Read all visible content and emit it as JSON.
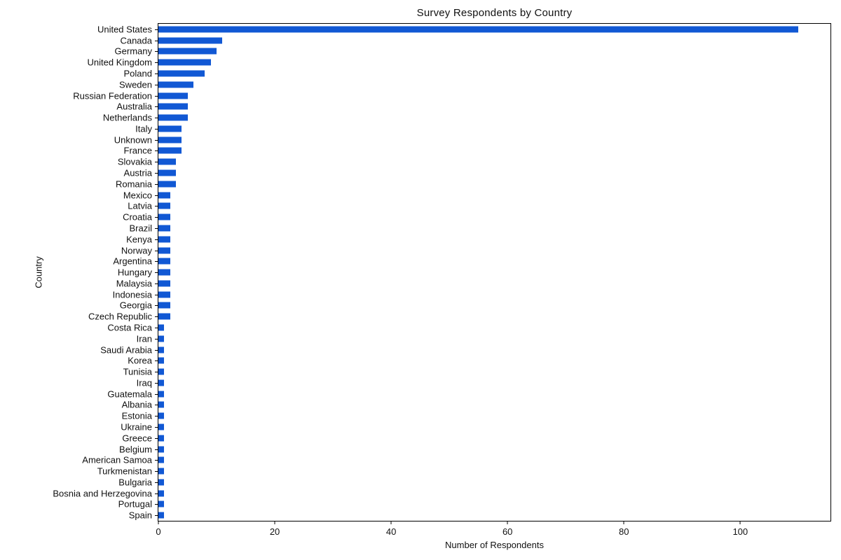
{
  "chart_data": {
    "type": "bar",
    "orientation": "horizontal",
    "title": "Survey Respondents by Country",
    "xlabel": "Number of Respondents",
    "ylabel": "Country",
    "categories": [
      "United States",
      "Canada",
      "Germany",
      "United Kingdom",
      "Poland",
      "Sweden",
      "Russian Federation",
      "Australia",
      "Netherlands",
      "Italy",
      "Unknown",
      "France",
      "Slovakia",
      "Austria",
      "Romania",
      "Mexico",
      "Latvia",
      "Croatia",
      "Brazil",
      "Kenya",
      "Norway",
      "Argentina",
      "Hungary",
      "Malaysia",
      "Indonesia",
      "Georgia",
      "Czech Republic",
      "Costa Rica",
      "Iran",
      "Saudi Arabia",
      "Korea",
      "Tunisia",
      "Iraq",
      "Guatemala",
      "Albania",
      "Estonia",
      "Ukraine",
      "Greece",
      "Belgium",
      "American Samoa",
      "Turkmenistan",
      "Bulgaria",
      "Bosnia and Herzegovina",
      "Portugal",
      "Spain"
    ],
    "values": [
      110,
      11,
      10,
      9,
      8,
      6,
      5,
      5,
      5,
      4,
      4,
      4,
      3,
      3,
      3,
      2,
      2,
      2,
      2,
      2,
      2,
      2,
      2,
      2,
      2,
      2,
      2,
      1,
      1,
      1,
      1,
      1,
      1,
      1,
      1,
      1,
      1,
      1,
      1,
      1,
      1,
      1,
      1,
      1,
      1
    ],
    "xlim": [
      0,
      115.5
    ],
    "xticks": [
      0,
      20,
      40,
      60,
      80,
      100
    ],
    "grid": false,
    "legend": null,
    "bar_color": "#1158d4",
    "axis_color": "#000000",
    "text_color": "#111111",
    "background_color": "#ffffff"
  }
}
